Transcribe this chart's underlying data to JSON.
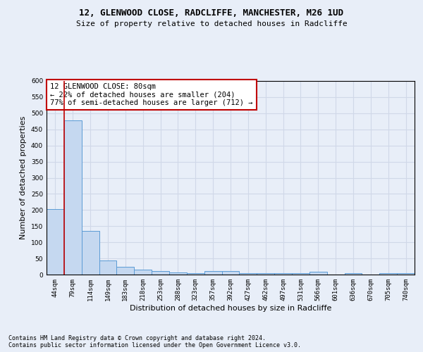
{
  "title_line1": "12, GLENWOOD CLOSE, RADCLIFFE, MANCHESTER, M26 1UD",
  "title_line2": "Size of property relative to detached houses in Radcliffe",
  "xlabel": "Distribution of detached houses by size in Radcliffe",
  "ylabel": "Number of detached properties",
  "footnote": "Contains HM Land Registry data © Crown copyright and database right 2024.\nContains public sector information licensed under the Open Government Licence v3.0.",
  "bin_labels": [
    "44sqm",
    "79sqm",
    "114sqm",
    "149sqm",
    "183sqm",
    "218sqm",
    "253sqm",
    "288sqm",
    "323sqm",
    "357sqm",
    "392sqm",
    "427sqm",
    "462sqm",
    "497sqm",
    "531sqm",
    "566sqm",
    "601sqm",
    "636sqm",
    "670sqm",
    "705sqm",
    "740sqm"
  ],
  "bar_heights": [
    203,
    478,
    135,
    43,
    25,
    15,
    11,
    6,
    5,
    10,
    10,
    4,
    4,
    4,
    4,
    8,
    0,
    5,
    0,
    4,
    5
  ],
  "bar_color": "#c5d8f0",
  "bar_edge_color": "#5b9bd5",
  "vline_color": "#c00000",
  "annotation_text": "12 GLENWOOD CLOSE: 80sqm\n← 22% of detached houses are smaller (204)\n77% of semi-detached houses are larger (712) →",
  "annotation_box_color": "#ffffff",
  "annotation_box_edge": "#c00000",
  "ylim": [
    0,
    600
  ],
  "yticks": [
    0,
    50,
    100,
    150,
    200,
    250,
    300,
    350,
    400,
    450,
    500,
    550,
    600
  ],
  "grid_color": "#d0d8e8",
  "bg_color": "#e8eef8",
  "title_fontsize": 9,
  "subtitle_fontsize": 8,
  "ylabel_fontsize": 8,
  "xlabel_fontsize": 8,
  "footnote_fontsize": 6,
  "annot_fontsize": 7.5,
  "tick_fontsize": 6.5
}
